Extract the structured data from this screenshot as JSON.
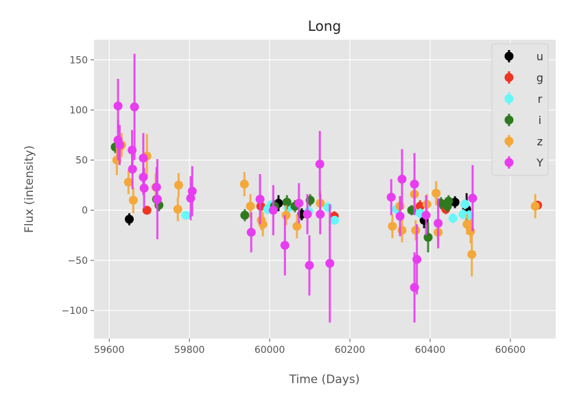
{
  "chart_data": {
    "type": "scatter",
    "title": "Long",
    "xlabel": "Time (Days)",
    "ylabel": "Flux (intensity)",
    "xlim": [
      59562,
      60713
    ],
    "ylim": [
      -128,
      170
    ],
    "xticks": [
      59600,
      59800,
      60000,
      60200,
      60400,
      60600
    ],
    "yticks": [
      -100,
      -50,
      0,
      50,
      100,
      150
    ],
    "grid": true,
    "legend_placement": "top-right",
    "error_bars": true,
    "series": [
      {
        "name": "u",
        "color": "#000000",
        "points": [
          [
            59650,
            -9,
            6
          ],
          [
            60022,
            7,
            8
          ],
          [
            60080,
            -4,
            6
          ],
          [
            60385,
            -10,
            8
          ],
          [
            60462,
            8,
            6
          ],
          [
            60491,
            1,
            16
          ]
        ]
      },
      {
        "name": "g",
        "color": "#ee3524",
        "points": [
          [
            59694,
            0,
            4
          ],
          [
            59978,
            4,
            6
          ],
          [
            60161,
            -6,
            5
          ],
          [
            60375,
            4,
            6
          ],
          [
            60439,
            1,
            5
          ],
          [
            60668,
            5,
            4
          ]
        ]
      },
      {
        "name": "r",
        "color": "#66f7f7",
        "points": [
          [
            59791,
            -5,
            4
          ],
          [
            59995,
            1,
            5
          ],
          [
            60003,
            5,
            5
          ],
          [
            60046,
            2,
            5
          ],
          [
            60097,
            -1,
            5
          ],
          [
            60145,
            3,
            5
          ],
          [
            60162,
            -10,
            4
          ],
          [
            60316,
            1,
            5
          ],
          [
            60375,
            -3,
            5
          ],
          [
            60457,
            -8,
            5
          ],
          [
            60482,
            -4,
            5
          ],
          [
            60497,
            -5,
            5
          ],
          [
            60487,
            6,
            5
          ]
        ]
      },
      {
        "name": "i",
        "color": "#2f7a1f",
        "points": [
          [
            59615,
            63,
            6
          ],
          [
            59718,
            11,
            6
          ],
          [
            59724,
            5,
            6
          ],
          [
            59938,
            -5,
            6
          ],
          [
            60012,
            4,
            6
          ],
          [
            60043,
            8,
            7
          ],
          [
            60063,
            4,
            6
          ],
          [
            60101,
            10,
            6
          ],
          [
            60354,
            0,
            5
          ],
          [
            60395,
            -27,
            15
          ],
          [
            60427,
            7,
            6
          ],
          [
            60443,
            4,
            6
          ],
          [
            60446,
            9,
            6
          ]
        ]
      },
      {
        "name": "z",
        "color": "#f4a83a",
        "points": [
          [
            59619,
            50,
            15
          ],
          [
            59627,
            63,
            13
          ],
          [
            59631,
            65,
            12
          ],
          [
            59648,
            28,
            12
          ],
          [
            59660,
            10,
            13
          ],
          [
            59694,
            54,
            22
          ],
          [
            59716,
            23,
            14
          ],
          [
            59773,
            25,
            12
          ],
          [
            59771,
            1,
            12
          ],
          [
            59937,
            26,
            12
          ],
          [
            59952,
            4,
            12
          ],
          [
            59979,
            -10,
            10
          ],
          [
            59983,
            -14,
            12
          ],
          [
            60041,
            -5,
            10
          ],
          [
            60068,
            -16,
            12
          ],
          [
            60126,
            7,
            12
          ],
          [
            60306,
            -16,
            12
          ],
          [
            60325,
            4,
            10
          ],
          [
            60330,
            -20,
            12
          ],
          [
            60361,
            16,
            12
          ],
          [
            60364,
            -20,
            10
          ],
          [
            60392,
            6,
            10
          ],
          [
            60415,
            17,
            12
          ],
          [
            60420,
            -22,
            12
          ],
          [
            60492,
            -14,
            10
          ],
          [
            60501,
            -21,
            12
          ],
          [
            60504,
            -44,
            22
          ],
          [
            60662,
            4,
            12
          ]
        ]
      },
      {
        "name": "Y",
        "color": "#e83cf0",
        "points": [
          [
            59622,
            104,
            27
          ],
          [
            59622,
            70,
            20
          ],
          [
            59626,
            65,
            20
          ],
          [
            59663,
            103,
            53
          ],
          [
            59658,
            41,
            20
          ],
          [
            59657,
            60,
            20
          ],
          [
            59685,
            52,
            25
          ],
          [
            59687,
            22,
            20
          ],
          [
            59685,
            33,
            18
          ],
          [
            59718,
            23,
            20
          ],
          [
            59720,
            11,
            40
          ],
          [
            59807,
            19,
            25
          ],
          [
            59803,
            12,
            22
          ],
          [
            59954,
            -22,
            20
          ],
          [
            59976,
            11,
            25
          ],
          [
            60009,
            0,
            25
          ],
          [
            60038,
            -35,
            30
          ],
          [
            60073,
            7,
            20
          ],
          [
            60094,
            -4,
            20
          ],
          [
            60099,
            -55,
            30
          ],
          [
            60125,
            46,
            33
          ],
          [
            60150,
            -53,
            59
          ],
          [
            60126,
            -4,
            20
          ],
          [
            60303,
            13,
            18
          ],
          [
            60325,
            -6,
            20
          ],
          [
            60330,
            31,
            30
          ],
          [
            60361,
            -77,
            35
          ],
          [
            60367,
            -49,
            35
          ],
          [
            60361,
            26,
            31
          ],
          [
            60390,
            -5,
            20
          ],
          [
            60420,
            -13,
            25
          ],
          [
            60506,
            12,
            33
          ]
        ]
      }
    ]
  }
}
